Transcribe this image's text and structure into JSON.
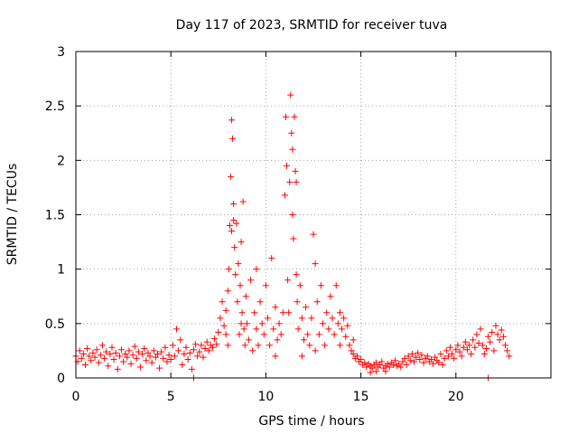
{
  "chart_data": {
    "type": "scatter",
    "title": "Day 117 of 2023, SRMTID for receiver tuva",
    "xlabel": "GPS time / hours",
    "ylabel": "SRMTID / TECUs",
    "xlim": [
      0,
      25
    ],
    "ylim": [
      0,
      3
    ],
    "x_ticks": [
      "0",
      "5",
      "10",
      "15",
      "20"
    ],
    "y_ticks": [
      "0",
      "0.5",
      "1",
      "1.5",
      "2",
      "2.5",
      "3"
    ],
    "x_tick_values": [
      0,
      5,
      10,
      15,
      20
    ],
    "y_tick_values": [
      0,
      0.5,
      1,
      1.5,
      2,
      2.5,
      3
    ],
    "grid": true,
    "marker": "+",
    "color": "#ff0000",
    "series": [
      {
        "name": "tuva",
        "points": [
          [
            0.0,
            0.2
          ],
          [
            0.1,
            0.15
          ],
          [
            0.2,
            0.25
          ],
          [
            0.3,
            0.18
          ],
          [
            0.4,
            0.22
          ],
          [
            0.5,
            0.12
          ],
          [
            0.6,
            0.27
          ],
          [
            0.7,
            0.2
          ],
          [
            0.8,
            0.16
          ],
          [
            0.9,
            0.23
          ],
          [
            1.0,
            0.19
          ],
          [
            1.1,
            0.26
          ],
          [
            1.2,
            0.14
          ],
          [
            1.3,
            0.21
          ],
          [
            1.4,
            0.3
          ],
          [
            1.5,
            0.18
          ],
          [
            1.6,
            0.24
          ],
          [
            1.7,
            0.11
          ],
          [
            1.8,
            0.22
          ],
          [
            1.9,
            0.28
          ],
          [
            2.0,
            0.17
          ],
          [
            2.1,
            0.23
          ],
          [
            2.2,
            0.08
          ],
          [
            2.3,
            0.2
          ],
          [
            2.4,
            0.26
          ],
          [
            2.5,
            0.15
          ],
          [
            2.6,
            0.22
          ],
          [
            2.7,
            0.19
          ],
          [
            2.8,
            0.25
          ],
          [
            2.9,
            0.13
          ],
          [
            3.0,
            0.21
          ],
          [
            3.1,
            0.29
          ],
          [
            3.2,
            0.18
          ],
          [
            3.3,
            0.24
          ],
          [
            3.4,
            0.1
          ],
          [
            3.5,
            0.22
          ],
          [
            3.6,
            0.27
          ],
          [
            3.7,
            0.16
          ],
          [
            3.8,
            0.23
          ],
          [
            3.9,
            0.2
          ],
          [
            4.0,
            0.14
          ],
          [
            4.1,
            0.25
          ],
          [
            4.2,
            0.19
          ],
          [
            4.3,
            0.22
          ],
          [
            4.4,
            0.09
          ],
          [
            4.5,
            0.24
          ],
          [
            4.6,
            0.18
          ],
          [
            4.7,
            0.28
          ],
          [
            4.8,
            0.15
          ],
          [
            4.9,
            0.21
          ],
          [
            5.0,
            0.17
          ],
          [
            5.1,
            0.3
          ],
          [
            5.2,
            0.2
          ],
          [
            5.3,
            0.45
          ],
          [
            5.4,
            0.25
          ],
          [
            5.5,
            0.35
          ],
          [
            5.6,
            0.12
          ],
          [
            5.7,
            0.22
          ],
          [
            5.8,
            0.28
          ],
          [
            5.9,
            0.17
          ],
          [
            6.0,
            0.23
          ],
          [
            6.1,
            0.08
          ],
          [
            6.2,
            0.26
          ],
          [
            6.3,
            0.31
          ],
          [
            6.4,
            0.2
          ],
          [
            6.5,
            0.24
          ],
          [
            6.6,
            0.3
          ],
          [
            6.7,
            0.19
          ],
          [
            6.8,
            0.27
          ],
          [
            6.9,
            0.33
          ],
          [
            7.0,
            0.25
          ],
          [
            7.1,
            0.3
          ],
          [
            7.2,
            0.28
          ],
          [
            7.3,
            0.36
          ],
          [
            7.4,
            0.31
          ],
          [
            7.5,
            0.42
          ],
          [
            7.6,
            0.55
          ],
          [
            7.7,
            0.7
          ],
          [
            7.8,
            0.48
          ],
          [
            7.9,
            0.62
          ],
          [
            8.0,
            0.8
          ],
          [
            8.05,
            1.0
          ],
          [
            8.1,
            1.4
          ],
          [
            8.15,
            1.85
          ],
          [
            8.2,
            2.37
          ],
          [
            8.25,
            2.2
          ],
          [
            8.3,
            1.6
          ],
          [
            8.35,
            1.2
          ],
          [
            8.4,
            0.95
          ],
          [
            8.45,
            1.42
          ],
          [
            8.5,
            0.7
          ],
          [
            8.55,
            1.05
          ],
          [
            8.6,
            0.4
          ],
          [
            8.65,
            0.85
          ],
          [
            8.7,
            1.25
          ],
          [
            8.75,
            0.6
          ],
          [
            8.8,
            1.62
          ],
          [
            8.85,
            0.45
          ],
          [
            8.9,
            0.3
          ],
          [
            8.95,
            0.75
          ],
          [
            9.0,
            0.5
          ],
          [
            9.1,
            0.35
          ],
          [
            9.2,
            0.9
          ],
          [
            9.3,
            0.25
          ],
          [
            9.4,
            0.6
          ],
          [
            9.5,
            0.45
          ],
          [
            9.6,
            0.3
          ],
          [
            9.7,
            0.7
          ],
          [
            9.8,
            0.5
          ],
          [
            9.9,
            0.4
          ],
          [
            10.0,
            0.85
          ],
          [
            10.1,
            0.55
          ],
          [
            10.2,
            0.3
          ],
          [
            10.3,
            1.1
          ],
          [
            10.4,
            0.45
          ],
          [
            10.5,
            0.65
          ],
          [
            10.6,
            0.35
          ],
          [
            10.7,
            0.5
          ],
          [
            10.8,
            0.4
          ],
          [
            10.9,
            0.6
          ],
          [
            11.0,
            1.68
          ],
          [
            11.05,
            2.4
          ],
          [
            11.1,
            1.95
          ],
          [
            11.15,
            0.9
          ],
          [
            11.2,
            0.6
          ],
          [
            11.25,
            1.8
          ],
          [
            11.3,
            2.6
          ],
          [
            11.35,
            2.25
          ],
          [
            11.4,
            1.5
          ],
          [
            11.45,
            1.28
          ],
          [
            11.5,
            2.4
          ],
          [
            11.55,
            1.9
          ],
          [
            11.6,
            0.95
          ],
          [
            11.65,
            0.7
          ],
          [
            11.7,
            0.45
          ],
          [
            11.8,
            0.85
          ],
          [
            11.9,
            0.55
          ],
          [
            12.0,
            0.35
          ],
          [
            12.1,
            0.65
          ],
          [
            12.2,
            0.4
          ],
          [
            12.3,
            0.3
          ],
          [
            12.4,
            0.55
          ],
          [
            12.5,
            1.32
          ],
          [
            12.6,
            1.05
          ],
          [
            12.7,
            0.7
          ],
          [
            12.8,
            0.4
          ],
          [
            12.9,
            0.85
          ],
          [
            13.0,
            0.5
          ],
          [
            13.1,
            0.3
          ],
          [
            13.2,
            0.6
          ],
          [
            13.3,
            0.45
          ],
          [
            13.4,
            0.75
          ],
          [
            13.5,
            0.55
          ],
          [
            13.6,
            0.4
          ],
          [
            13.7,
            0.85
          ],
          [
            13.8,
            0.5
          ],
          [
            13.9,
            0.6
          ],
          [
            14.0,
            0.45
          ],
          [
            14.1,
            0.55
          ],
          [
            14.2,
            0.38
          ],
          [
            14.3,
            0.48
          ],
          [
            14.4,
            0.3
          ],
          [
            14.5,
            0.25
          ],
          [
            14.6,
            0.22
          ],
          [
            14.7,
            0.18
          ],
          [
            14.8,
            0.2
          ],
          [
            14.9,
            0.15
          ],
          [
            15.0,
            0.17
          ],
          [
            15.1,
            0.12
          ],
          [
            15.2,
            0.14
          ],
          [
            15.3,
            0.1
          ],
          [
            15.4,
            0.13
          ],
          [
            15.5,
            0.11
          ],
          [
            15.6,
            0.09
          ],
          [
            15.7,
            0.12
          ],
          [
            15.8,
            0.14
          ],
          [
            15.9,
            0.1
          ],
          [
            16.0,
            0.12
          ],
          [
            16.1,
            0.15
          ],
          [
            16.2,
            0.09
          ],
          [
            16.3,
            0.11
          ],
          [
            16.4,
            0.13
          ],
          [
            16.5,
            0.1
          ],
          [
            16.6,
            0.14
          ],
          [
            16.7,
            0.12
          ],
          [
            16.8,
            0.16
          ],
          [
            16.9,
            0.11
          ],
          [
            17.0,
            0.13
          ],
          [
            17.1,
            0.1
          ],
          [
            17.2,
            0.15
          ],
          [
            17.3,
            0.18
          ],
          [
            17.4,
            0.12
          ],
          [
            17.5,
            0.2
          ],
          [
            17.6,
            0.16
          ],
          [
            17.7,
            0.22
          ],
          [
            17.8,
            0.15
          ],
          [
            17.9,
            0.19
          ],
          [
            18.0,
            0.23
          ],
          [
            18.1,
            0.17
          ],
          [
            18.2,
            0.21
          ],
          [
            18.3,
            0.14
          ],
          [
            18.4,
            0.18
          ],
          [
            18.5,
            0.2
          ],
          [
            18.6,
            0.15
          ],
          [
            18.7,
            0.17
          ],
          [
            18.8,
            0.13
          ],
          [
            18.9,
            0.19
          ],
          [
            19.0,
            0.16
          ],
          [
            19.1,
            0.14
          ],
          [
            19.2,
            0.22
          ],
          [
            19.3,
            0.12
          ],
          [
            19.4,
            0.18
          ],
          [
            19.5,
            0.25
          ],
          [
            19.6,
            0.2
          ],
          [
            19.7,
            0.28
          ],
          [
            19.8,
            0.22
          ],
          [
            19.9,
            0.18
          ],
          [
            20.0,
            0.26
          ],
          [
            20.1,
            0.3
          ],
          [
            20.2,
            0.24
          ],
          [
            20.3,
            0.2
          ],
          [
            20.4,
            0.28
          ],
          [
            20.5,
            0.33
          ],
          [
            20.6,
            0.26
          ],
          [
            20.7,
            0.3
          ],
          [
            20.8,
            0.22
          ],
          [
            20.9,
            0.35
          ],
          [
            21.0,
            0.28
          ],
          [
            21.1,
            0.4
          ],
          [
            21.2,
            0.32
          ],
          [
            21.3,
            0.45
          ],
          [
            21.4,
            0.3
          ],
          [
            21.5,
            0.22
          ],
          [
            21.6,
            0.27
          ],
          [
            21.7,
            0.38
          ],
          [
            21.8,
            0.33
          ],
          [
            21.9,
            0.42
          ],
          [
            22.0,
            0.25
          ],
          [
            22.1,
            0.48
          ],
          [
            22.2,
            0.4
          ],
          [
            22.3,
            0.35
          ],
          [
            22.4,
            0.44
          ],
          [
            22.5,
            0.38
          ],
          [
            22.6,
            0.3
          ],
          [
            22.7,
            0.25
          ],
          [
            22.8,
            0.2
          ],
          [
            6.2,
            0.0
          ],
          [
            21.7,
            0.0
          ],
          [
            15.5,
            0.05
          ],
          [
            15.8,
            0.06
          ],
          [
            16.3,
            0.06
          ],
          [
            8.2,
            1.35
          ],
          [
            8.3,
            1.45
          ],
          [
            11.4,
            2.1
          ],
          [
            11.6,
            1.8
          ],
          [
            8.7,
            0.5
          ],
          [
            9.5,
            1.0
          ],
          [
            10.5,
            0.2
          ],
          [
            11.9,
            0.2
          ],
          [
            12.6,
            0.25
          ],
          [
            13.9,
            0.3
          ],
          [
            8.0,
            0.3
          ],
          [
            7.9,
            0.4
          ],
          [
            14.6,
            0.35
          ]
        ]
      }
    ]
  }
}
